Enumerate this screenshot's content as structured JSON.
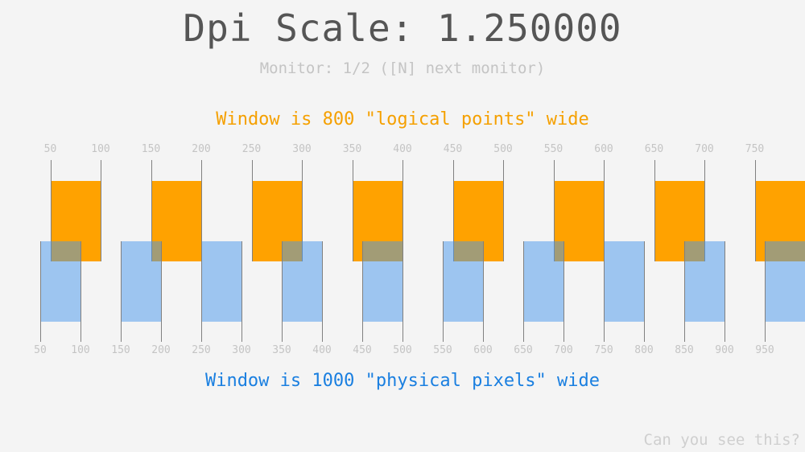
{
  "title": "Dpi Scale: 1.250000",
  "monitor": "Monitor: 1/2 ([N] next monitor)",
  "logical_caption": "Window is 800 \"logical points\" wide",
  "physical_caption": "Window is 1000 \"physical pixels\" wide",
  "footer": "Can you see this?",
  "dpi_scale": 1.25,
  "logical_ticks": [
    "50",
    "100",
    "150",
    "200",
    "250",
    "300",
    "350",
    "400",
    "450",
    "500",
    "550",
    "600",
    "650",
    "700",
    "750"
  ],
  "physical_ticks": [
    "50",
    "100",
    "150",
    "200",
    "250",
    "300",
    "350",
    "400",
    "450",
    "500",
    "550",
    "600",
    "650",
    "700",
    "750",
    "800",
    "850",
    "900",
    "950"
  ],
  "colors": {
    "logical": "#ffa200",
    "physical": "#1a7fe0",
    "physical_fill": "#96c3f2"
  }
}
